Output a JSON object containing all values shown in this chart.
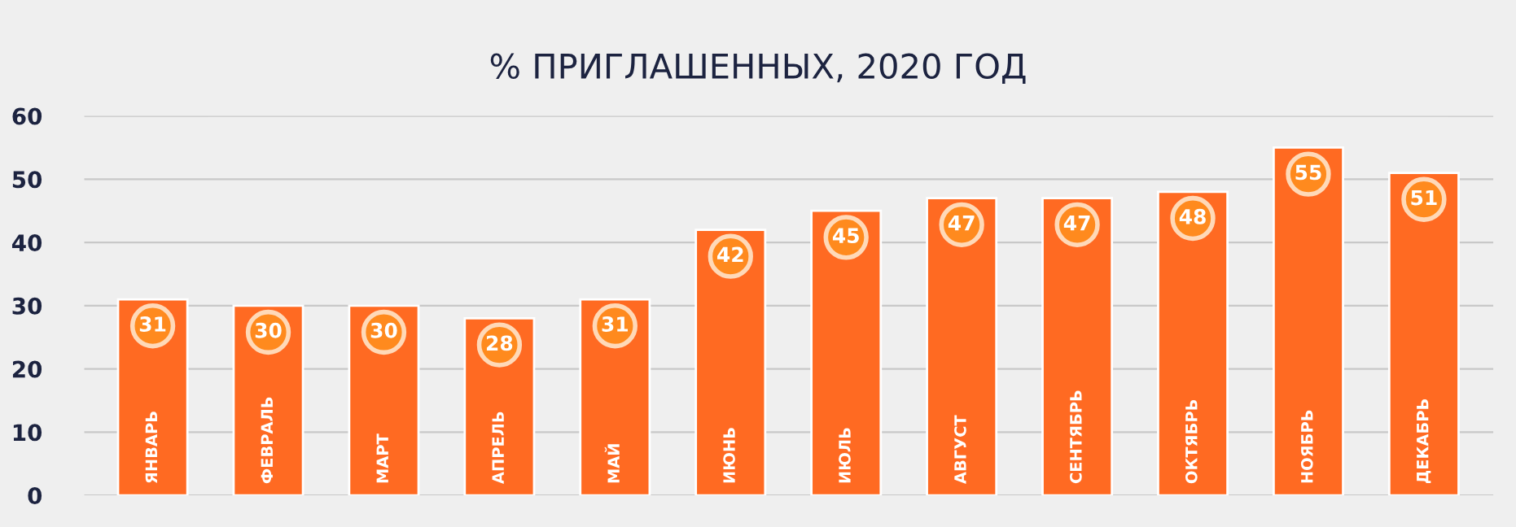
{
  "chart_data": {
    "type": "bar",
    "title": "% ПРИГЛАШЕННЫХ, 2020 ГОД",
    "categories": [
      "ЯНВАРЬ",
      "ФЕВРАЛЬ",
      "МАРТ",
      "АПРЕЛЬ",
      "МАЙ",
      "ИЮНЬ",
      "ИЮЛЬ",
      "АВГУСТ",
      "СЕНТЯБРЬ",
      "ОКТЯБРЬ",
      "НОЯБРЬ",
      "ДЕКАБРЬ"
    ],
    "values": [
      31,
      30,
      30,
      28,
      31,
      42,
      45,
      47,
      47,
      48,
      55,
      51
    ],
    "color": "#ff6a22",
    "ylim": [
      0,
      60
    ],
    "yticks": [
      0,
      10,
      20,
      30,
      40,
      50,
      60
    ],
    "grid": "y",
    "data_labels": true
  }
}
